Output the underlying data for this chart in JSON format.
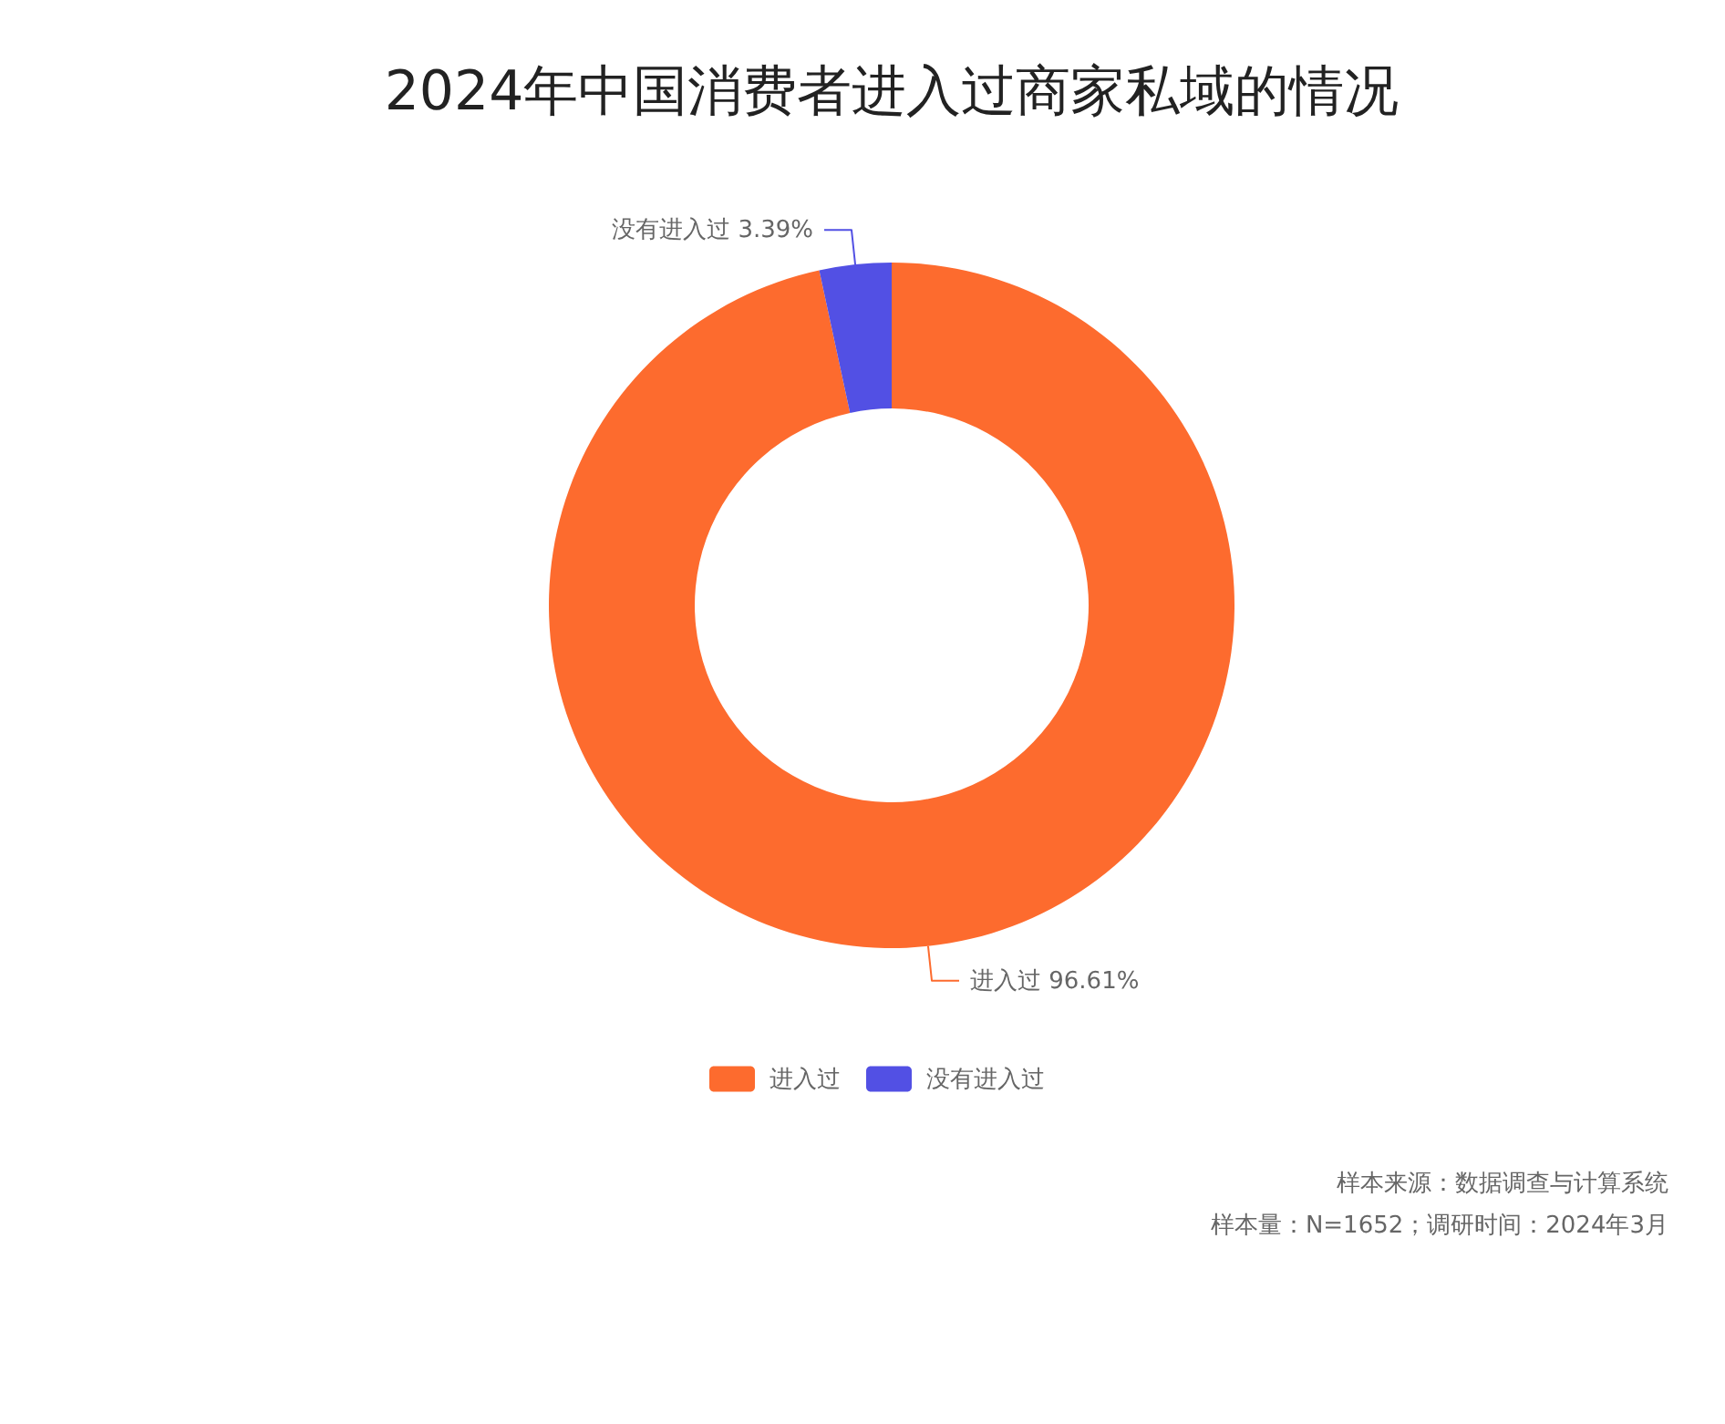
{
  "chart_data": {
    "type": "donut",
    "title": "2024年中国消费者进入过商家私域的情况",
    "categories": [
      "进入过",
      "没有进入过"
    ],
    "values": [
      96.61,
      3.39
    ],
    "colors": [
      "#fd6b2e",
      "#5250e4"
    ],
    "value_labels": [
      "96.61%",
      "3.39%"
    ],
    "legend": "bottom",
    "annotations": [
      "样本来源：数据调查与计算系统",
      "样本量：N=1652；调研时间：2024年3月"
    ]
  }
}
